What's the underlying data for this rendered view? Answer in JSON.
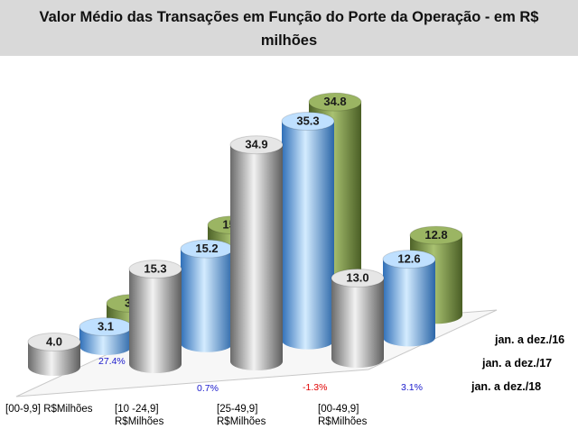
{
  "chart_data": {
    "type": "bar",
    "title": "Valor Médio das Transações em Função do Porte da Operação - em R$ milhões",
    "categories": [
      "[00-9,9] R$Milhões",
      "[10 -24,9] R$Milhões",
      "[25-49,9] R$Milhões",
      "[00-49,9] R$Milhões"
    ],
    "series": [
      {
        "name": "jan. a dez./16",
        "values": [
          3.4,
          15.5,
          34.8,
          12.8
        ],
        "color": "#6f8a3c"
      },
      {
        "name": "jan. a dez./17",
        "values": [
          3.1,
          15.2,
          35.3,
          12.6
        ],
        "color": "#4d9be0"
      },
      {
        "name": "jan. a dez./18",
        "values": [
          4.0,
          15.3,
          34.9,
          13.0
        ],
        "color": "#9a9a9a"
      }
    ],
    "variation_labels": [
      {
        "text": "27.4%",
        "color": "#1a1acc"
      },
      {
        "text": "0.7%",
        "color": "#1a1acc"
      },
      {
        "text": "-1.3%",
        "color": "#e00000"
      },
      {
        "text": "3.1%",
        "color": "#1a1acc"
      }
    ],
    "ylim": [
      0,
      36
    ],
    "legend_position": "right",
    "grid": false
  }
}
